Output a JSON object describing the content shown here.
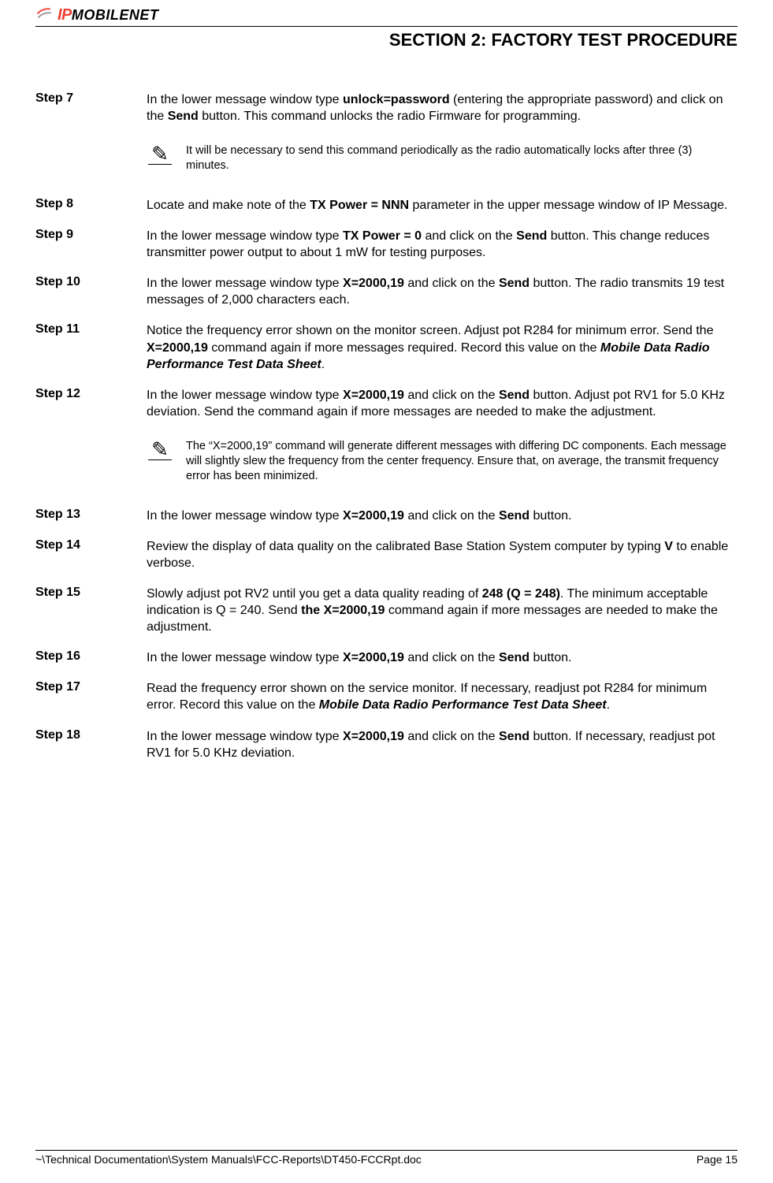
{
  "logo": {
    "ip": "IP",
    "mobile": "MOBILE",
    "net": "NET"
  },
  "section_title": "SECTION 2:  FACTORY TEST PROCEDURE",
  "steps": {
    "s7_label": "Step 7",
    "s8_label": "Step 8",
    "s9_label": "Step 9",
    "s10_label": "Step 10",
    "s11_label": "Step 11",
    "s12_label": "Step 12",
    "s13_label": "Step 13",
    "s14_label": "Step 14",
    "s15_label": "Step 15",
    "s16_label": "Step 16",
    "s17_label": "Step 17",
    "s18_label": "Step 18"
  },
  "t": {
    "s7a": "In the lower message window type ",
    "s7b": "unlock=password",
    "s7c": " (entering the appropriate password) and click on the ",
    "s7d": "Send",
    "s7e": " button.  This command unlocks the radio Firmware for programming.",
    "note1": "It will be necessary to send this command periodically as the radio automatically locks after three (3) minutes.",
    "s8a": "Locate and make note of the ",
    "s8b": "TX Power = NNN",
    "s8c": " parameter in the upper message window of IP Message.",
    "s9a": "In the lower message window type ",
    "s9b": "TX Power = 0",
    "s9c": " and click on the ",
    "s9d": "Send",
    "s9e": " button.  This change reduces transmitter power output to about 1 mW for testing purposes.",
    "s10a": "In the lower message window type ",
    "s10b": "X=2000,19",
    "s10c": " and click on the ",
    "s10d": "Send",
    "s10e": " button.  The radio transmits 19 test messages of 2,000 characters each.",
    "s11a": "Notice the frequency error shown on the monitor screen.  Adjust pot R284 for minimum error.  Send the ",
    "s11b": "X=2000,19",
    "s11c": " command again if more messages required.  Record this value on the ",
    "s11d": "Mobile Data Radio Performance Test Data Sheet",
    "s11e": ".",
    "s12a": "In the lower message window type ",
    "s12b": "X=2000,19",
    "s12c": " and click on the ",
    "s12d": "Send",
    "s12e": " button.  Adjust pot RV1 for 5.0 KHz deviation.  Send the command again if more messages are needed to make the adjustment.",
    "note2": "The “X=2000,19” command will generate different messages with differing DC components.  Each message will slightly slew the frequency from the center frequency.  Ensure that, on average, the transmit frequency error has been minimized.",
    "s13a": "In the lower message window type ",
    "s13b": "X=2000,19",
    "s13c": " and click on the ",
    "s13d": "Send",
    "s13e": " button.",
    "s14a": "Review the display of data quality on the calibrated Base Station System computer by typing ",
    "s14b": "V",
    "s14c": " to enable verbose.",
    "s15a": "Slowly adjust pot RV2 until you get a data quality reading of ",
    "s15b": "248 (Q = 248)",
    "s15c": ".  The minimum acceptable indication is Q = 240.  Send ",
    "s15d": "the X=2000,19",
    "s15e": " command again if more messages are needed to make the adjustment.",
    "s16a": "In the lower message window type ",
    "s16b": "X=2000,19",
    "s16c": " and click on the ",
    "s16d": "Send",
    "s16e": " button.",
    "s17a": "Read the frequency error shown on the service monitor.  If necessary, readjust pot R284 for minimum error.  Record this value on the ",
    "s17b": "Mobile Data Radio Performance Test Data Sheet",
    "s17c": ".",
    "s18a": "In the lower message window type ",
    "s18b": "X=2000,19",
    "s18c": " and click on the ",
    "s18d": "Send",
    "s18e": " button.  If necessary, readjust pot RV1 for 5.0 KHz deviation."
  },
  "footer": {
    "path": "~\\Technical Documentation\\System Manuals\\FCC-Reports\\DT450-FCCRpt.doc",
    "page": "Page 15"
  }
}
